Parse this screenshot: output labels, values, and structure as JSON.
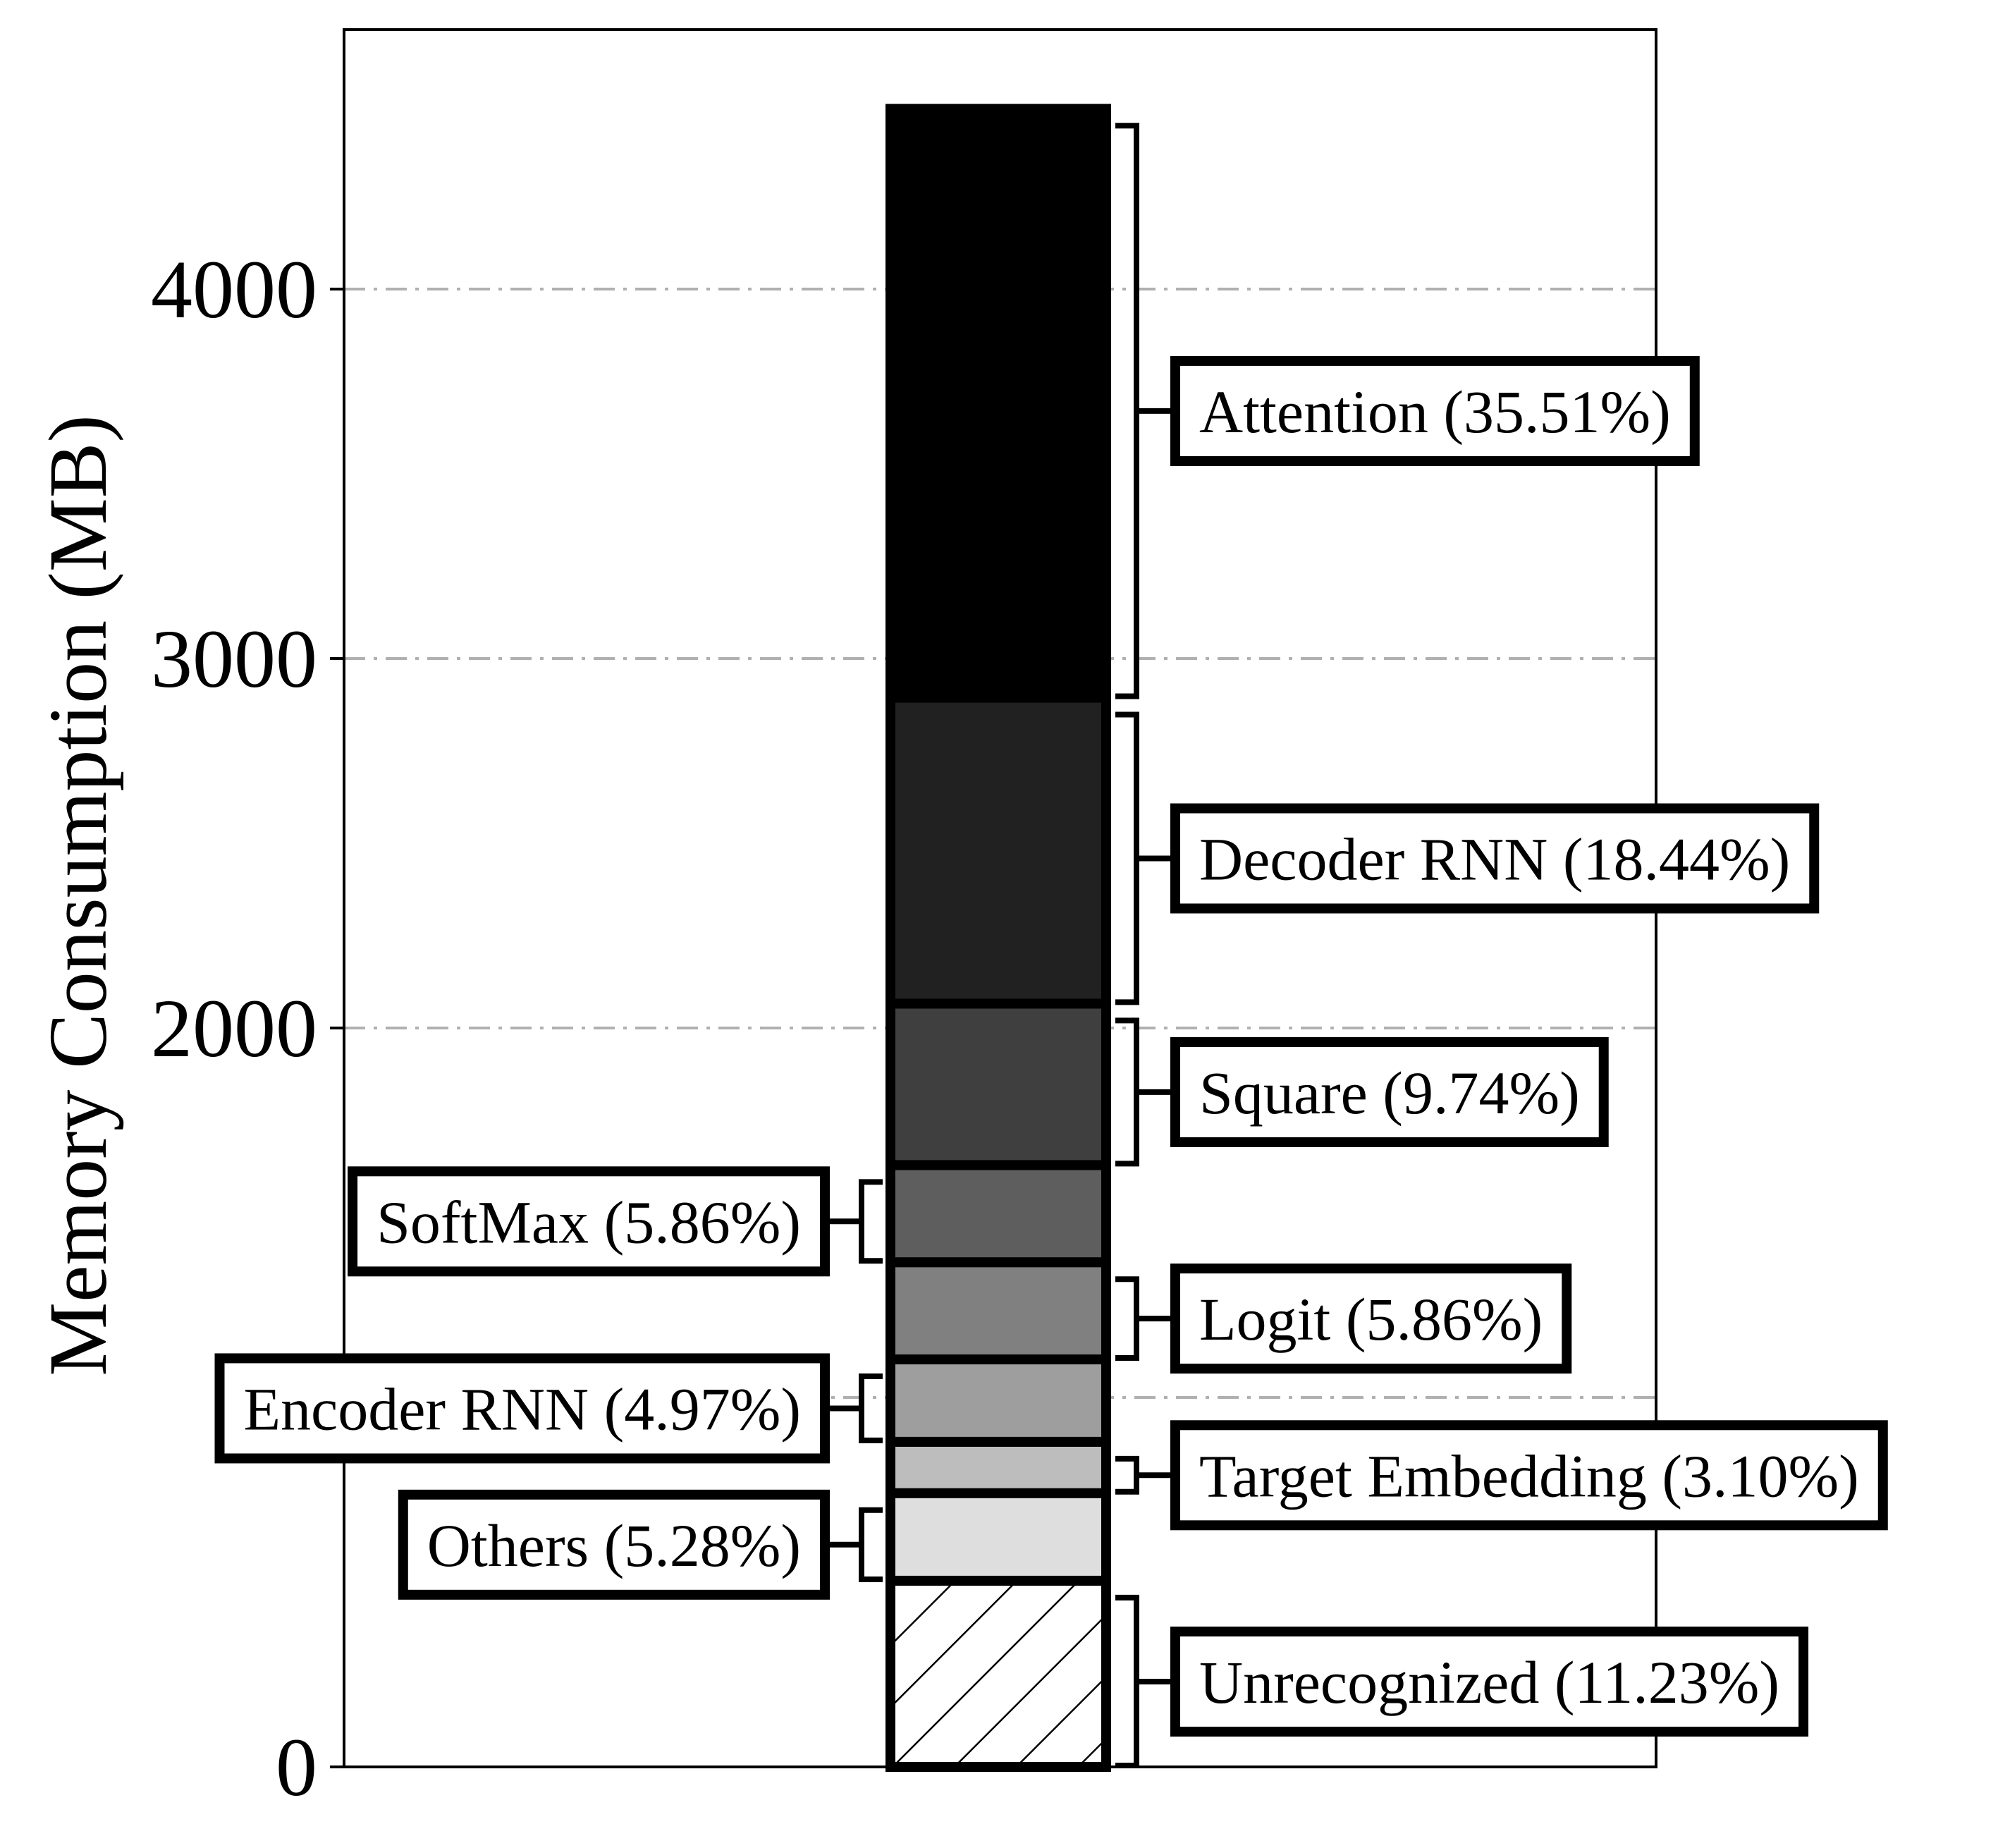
{
  "chart_data": {
    "type": "bar",
    "stacked": true,
    "title": "",
    "xlabel": "",
    "ylabel": "Memory Consumption (MB)",
    "ylim": [
      0,
      4700
    ],
    "yticks": [
      0,
      2000,
      3000,
      4000
    ],
    "grid": {
      "axis": "y",
      "style": "dash-dot",
      "color": "#b0b0b0"
    },
    "total": 4490,
    "series": [
      {
        "name": "Unrecognized (11.23%)",
        "value": 504,
        "color": "hatched",
        "side": "right"
      },
      {
        "name": "Others (5.28%)",
        "value": 237,
        "color": "#dedede",
        "side": "left"
      },
      {
        "name": "Target Embedding (3.10%)",
        "value": 139,
        "color": "#bdbdbd",
        "side": "right"
      },
      {
        "name": "Encoder RNN (4.97%)",
        "value": 223,
        "color": "#9e9e9e",
        "side": "left"
      },
      {
        "name": "Logit (5.86%)",
        "value": 263,
        "color": "#808080",
        "side": "right"
      },
      {
        "name": "SoftMax (5.86%)",
        "value": 263,
        "color": "#5e5e5e",
        "side": "left"
      },
      {
        "name": "Square (9.74%)",
        "value": 437,
        "color": "#3f3f3f",
        "side": "right"
      },
      {
        "name": "Decoder RNN (18.44%)",
        "value": 828,
        "color": "#212121",
        "side": "right"
      },
      {
        "name": "Attention (35.51%)",
        "value": 1594,
        "color": "#000000",
        "side": "right"
      }
    ]
  }
}
